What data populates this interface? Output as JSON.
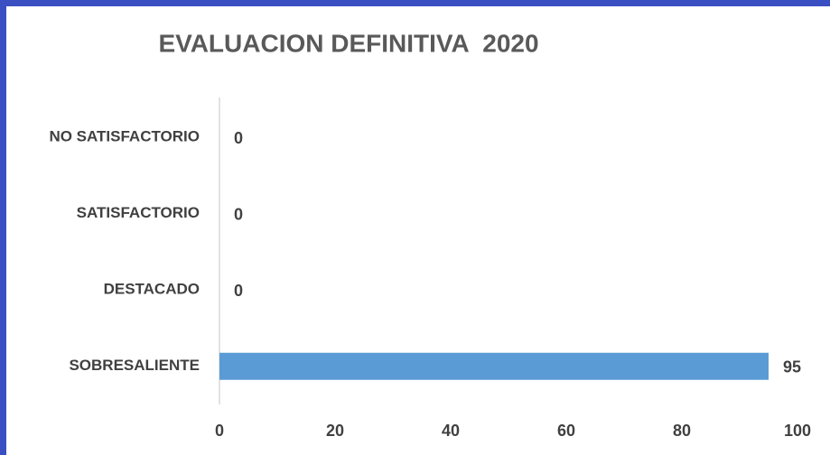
{
  "chart_data": {
    "type": "bar",
    "orientation": "horizontal",
    "title": "EVALUACION DEFINITIVA  2020",
    "categories": [
      "NO SATISFACTORIO",
      "SATISFACTORIO",
      "DESTACADO",
      "SOBRESALIENTE"
    ],
    "values": [
      0,
      0,
      0,
      95
    ],
    "color": "#5b9bd5",
    "xlim": [
      0,
      100
    ],
    "xticks": [
      0,
      20,
      40,
      60,
      80,
      100
    ],
    "grid": false
  }
}
